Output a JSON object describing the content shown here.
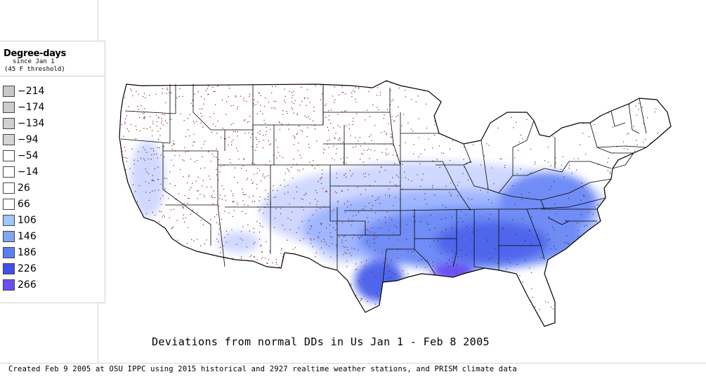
{
  "legend": {
    "title": "Degree-days",
    "subtitle": "since Jan 1",
    "threshold": "(45 F threshold)",
    "items": [
      {
        "label": "-214",
        "color": "#c8c8c8"
      },
      {
        "label": "-174",
        "color": "#cccccc"
      },
      {
        "label": "-134",
        "color": "#d0d0d0"
      },
      {
        "label": "-94",
        "color": "#d4d4d4"
      },
      {
        "label": "-54",
        "color": "#ffffff"
      },
      {
        "label": "-14",
        "color": "#ffffff"
      },
      {
        "label": "26",
        "color": "#ffffff"
      },
      {
        "label": "66",
        "color": "#ffffff"
      },
      {
        "label": "106",
        "color": "#9fc6ff"
      },
      {
        "label": "146",
        "color": "#7fa6f2"
      },
      {
        "label": "186",
        "color": "#5a7ff0"
      },
      {
        "label": "226",
        "color": "#3f4fe8"
      },
      {
        "label": "266",
        "color": "#6c4ff2"
      }
    ]
  },
  "map": {
    "land_color": "#ffffff",
    "boundary_color": "#000000",
    "station_dot_color": "#8b1a1a",
    "deviation_colors": [
      "#cfd8ff",
      "#9fb6ff",
      "#6f8cf5",
      "#4f66ec",
      "#3f44e0",
      "#6a4ff2"
    ]
  },
  "caption": "Deviations from normal DDs in Us Jan 1 - Feb 8 2005",
  "footer": "Created Feb 9 2005 at OSU IPPC using 2015 historical and 2927 realtime weather stations, and PRISM climate data"
}
